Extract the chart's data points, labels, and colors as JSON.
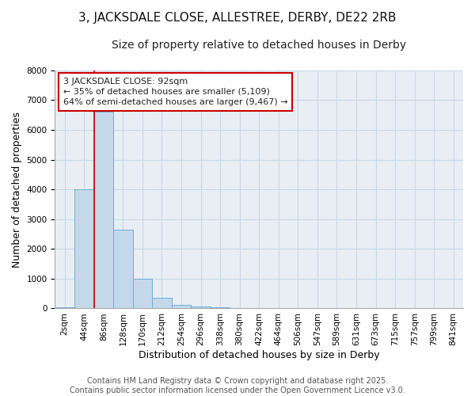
{
  "title1": "3, JACKSDALE CLOSE, ALLESTREE, DERBY, DE22 2RB",
  "title2": "Size of property relative to detached houses in Derby",
  "xlabel": "Distribution of detached houses by size in Derby",
  "ylabel": "Number of detached properties",
  "bar_labels": [
    "2sqm",
    "44sqm",
    "86sqm",
    "128sqm",
    "170sqm",
    "212sqm",
    "254sqm",
    "296sqm",
    "338sqm",
    "380sqm",
    "422sqm",
    "464sqm",
    "506sqm",
    "547sqm",
    "589sqm",
    "631sqm",
    "673sqm",
    "715sqm",
    "757sqm",
    "799sqm",
    "841sqm"
  ],
  "bar_heights": [
    50,
    4000,
    6600,
    2650,
    1000,
    350,
    130,
    60,
    50,
    0,
    0,
    0,
    0,
    0,
    0,
    0,
    0,
    0,
    0,
    0,
    0
  ],
  "bar_color": "#c5d8ea",
  "bar_edge_color": "#6baed6",
  "annotation_text": "3 JACKSDALE CLOSE: 92sqm\n← 35% of detached houses are smaller (5,109)\n64% of semi-detached houses are larger (9,467) →",
  "annotation_box_color": "#ffffff",
  "annotation_box_edge_color": "#cc0000",
  "red_line_bar_index": 2,
  "ylim": [
    0,
    8000
  ],
  "background_color": "#e8eef4",
  "grid_color": "#c8d8e8",
  "footer_text": "Contains HM Land Registry data © Crown copyright and database right 2025.\nContains public sector information licensed under the Open Government Licence v3.0.",
  "title_fontsize": 11,
  "subtitle_fontsize": 10,
  "axis_label_fontsize": 9,
  "tick_fontsize": 7.5,
  "annotation_fontsize": 8,
  "footer_fontsize": 7
}
